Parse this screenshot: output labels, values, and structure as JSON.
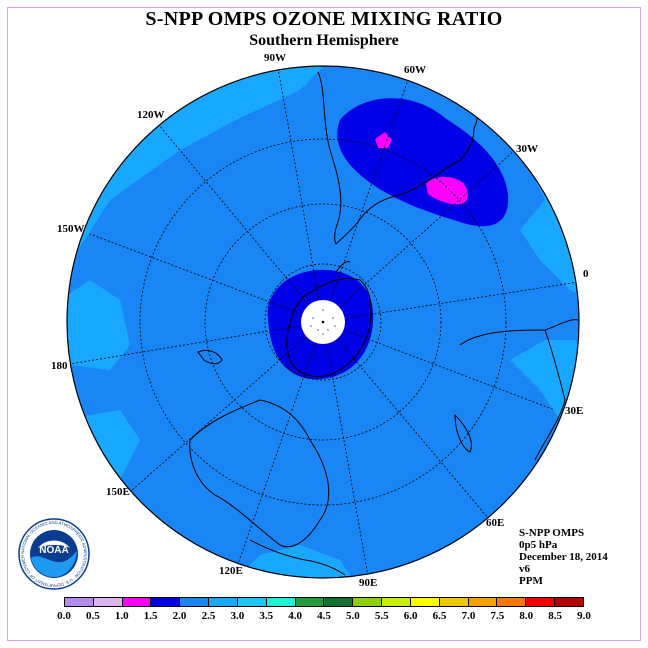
{
  "header": {
    "title": "S-NPP OMPS OZONE MIXING RATIO",
    "subtitle": "Southern Hemisphere"
  },
  "map": {
    "projection": "south-polar-stereographic",
    "meridian_labels": [
      "90W",
      "60W",
      "30W",
      "0",
      "30E",
      "60E",
      "90E",
      "120E",
      "150E",
      "180",
      "150W",
      "120W"
    ],
    "colors": {
      "ocean_background": "#1a86f5",
      "light_band": "#18a8ff",
      "low_dark": "#0000e6",
      "max_magenta": "#ff00ff",
      "pole_fill": "#ffffff",
      "coast": "#000000"
    }
  },
  "info": {
    "satellite": "S-NPP OMPS",
    "level": "0p5 hPa",
    "date": "December 18, 2014",
    "version": "v6",
    "units": "PPM"
  },
  "colorbar": {
    "labels": [
      "0.0",
      "0.5",
      "1.0",
      "1.5",
      "2.0",
      "2.5",
      "3.0",
      "3.5",
      "4.0",
      "4.5",
      "5.0",
      "5.5",
      "6.0",
      "6.5",
      "7.0",
      "7.5",
      "8.0",
      "8.5",
      "9.0"
    ],
    "colors": [
      "#b58bf0",
      "#dcb4f0",
      "#ff00ff",
      "#0000e6",
      "#1a86f5",
      "#18a8ff",
      "#1ec8f4",
      "#22f0d4",
      "#1f9a3c",
      "#14702e",
      "#8cd00a",
      "#c8f000",
      "#ffff00",
      "#f0c800",
      "#f5a000",
      "#f57800",
      "#f00000",
      "#b40000"
    ]
  },
  "logo": {
    "name": "noaa-logo",
    "text": "NOAA",
    "ring_text": "NATIONAL OCEANIC AND ATMOSPHERIC ADMINISTRATION · U.S. DEPARTMENT OF COMMERCE"
  }
}
